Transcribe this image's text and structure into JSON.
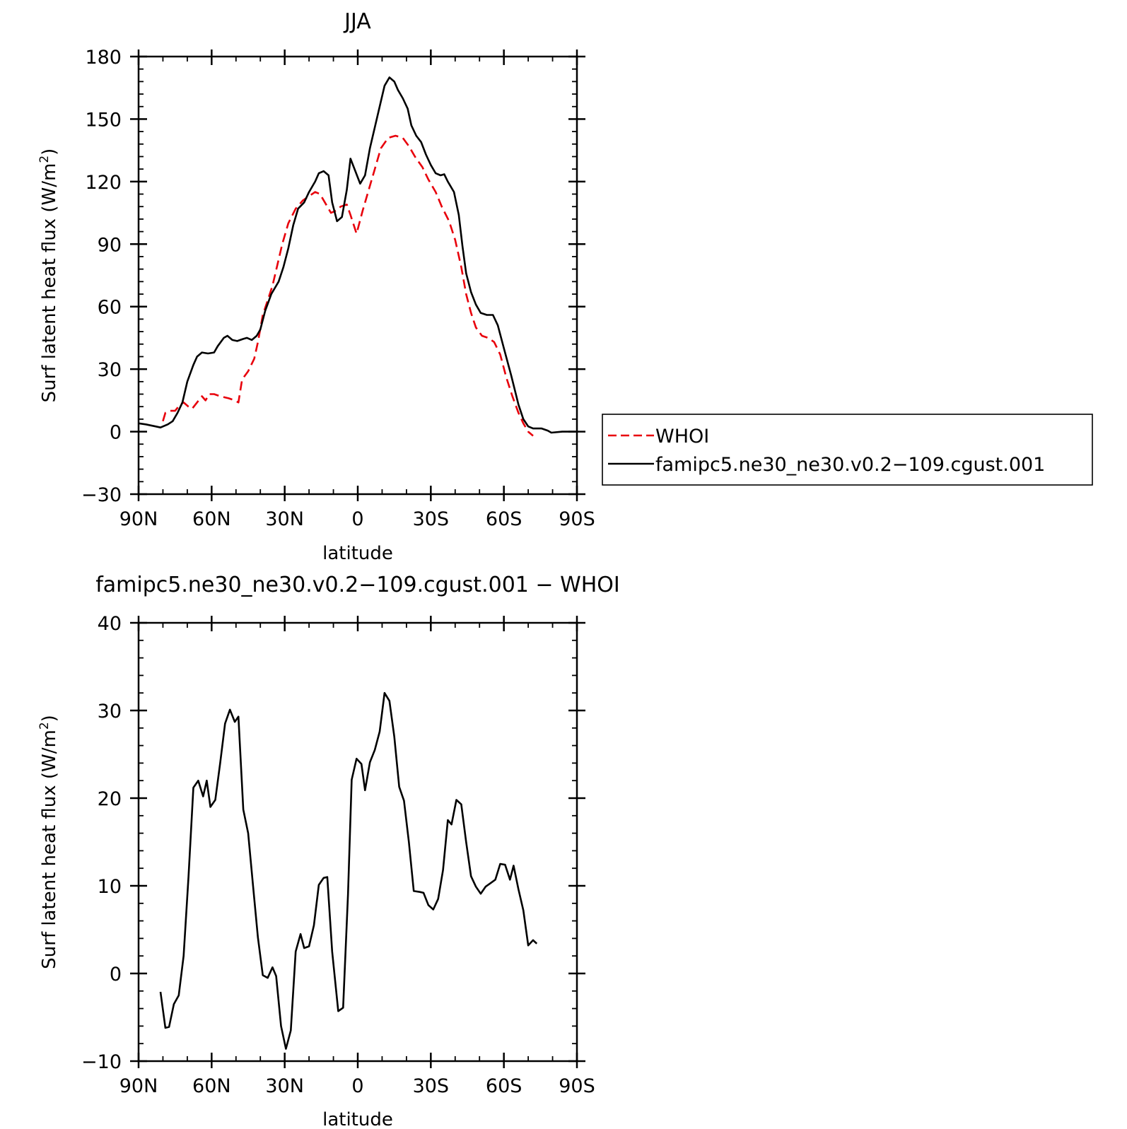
{
  "chart_data": [
    {
      "type": "line",
      "title": "JJA",
      "xlabel": "latitude",
      "ylabel": "Surf latent heat flux (W/m",
      "ylabel_sup": "2",
      "ylabel_close": ")",
      "xlim": [
        90,
        -90
      ],
      "ylim": [
        -30,
        180
      ],
      "xticks": [
        90,
        60,
        30,
        0,
        -30,
        -60,
        -90
      ],
      "xtick_labels": [
        "90N",
        "60N",
        "30N",
        "0",
        "30S",
        "60S",
        "90S"
      ],
      "yticks": [
        -30,
        0,
        30,
        60,
        90,
        120,
        150,
        180
      ],
      "ytick_labels": [
        "−30",
        "0",
        "30",
        "60",
        "90",
        "120",
        "150",
        "180"
      ],
      "legend_position": "right",
      "series": [
        {
          "name": "WHOI",
          "color": "#e8000b",
          "dash": "dashed",
          "points": [
            [
              80.0,
              5
            ],
            [
              79.0,
              9
            ],
            [
              77.0,
              10
            ],
            [
              75.0,
              10
            ],
            [
              73.0,
              13
            ],
            [
              71.5,
              14
            ],
            [
              69.5,
              12
            ],
            [
              68.0,
              11
            ],
            [
              66.0,
              14
            ],
            [
              64.0,
              17
            ],
            [
              62.5,
              15
            ],
            [
              61.0,
              18
            ],
            [
              59.0,
              18
            ],
            [
              56.5,
              17
            ],
            [
              53.0,
              16
            ],
            [
              50.5,
              15
            ],
            [
              49.0,
              14
            ],
            [
              47.5,
              25
            ],
            [
              45.0,
              29
            ],
            [
              42.5,
              35
            ],
            [
              41.0,
              43
            ],
            [
              39.0,
              56
            ],
            [
              37.0,
              63
            ],
            [
              35.0,
              70
            ],
            [
              33.0,
              80
            ],
            [
              31.0,
              90
            ],
            [
              28.5,
              100
            ],
            [
              25.5,
              107
            ],
            [
              22.5,
              111
            ],
            [
              20.0,
              113
            ],
            [
              17.5,
              115
            ],
            [
              15.5,
              114
            ],
            [
              13.5,
              110
            ],
            [
              11.0,
              105
            ],
            [
              9.0,
              106
            ],
            [
              7.0,
              108
            ],
            [
              4.5,
              109
            ],
            [
              3.0,
              104
            ],
            [
              0.5,
              95
            ],
            [
              -2.0,
              106
            ],
            [
              -5.0,
              118
            ],
            [
              -7.0,
              126
            ],
            [
              -9.5,
              136
            ],
            [
              -12.5,
              141
            ],
            [
              -15.5,
              142
            ],
            [
              -18.5,
              141
            ],
            [
              -21.0,
              137
            ],
            [
              -23.5,
              132
            ],
            [
              -26.5,
              127
            ],
            [
              -29.0,
              121
            ],
            [
              -32.0,
              115
            ],
            [
              -34.5,
              108
            ],
            [
              -37.5,
              101
            ],
            [
              -40.0,
              92
            ],
            [
              -42.5,
              79
            ],
            [
              -44.5,
              66
            ],
            [
              -46.5,
              57
            ],
            [
              -48.5,
              50
            ],
            [
              -51.0,
              46
            ],
            [
              -53.5,
              45
            ],
            [
              -56.0,
              43
            ],
            [
              -58.5,
              37
            ],
            [
              -61.0,
              26
            ],
            [
              -63.5,
              17
            ],
            [
              -66.0,
              9
            ],
            [
              -68.0,
              4
            ],
            [
              -70.0,
              0
            ],
            [
              -72.0,
              -2
            ]
          ]
        },
        {
          "name": "famipc5.ne30_ne30.v0.2−109.cgust.001",
          "color": "#000000",
          "dash": "solid",
          "points": [
            [
              90.0,
              4
            ],
            [
              87.0,
              3.5
            ],
            [
              83.0,
              2.5
            ],
            [
              81.0,
              2
            ],
            [
              78.0,
              3.5
            ],
            [
              76.0,
              5
            ],
            [
              74.0,
              9
            ],
            [
              72.0,
              14
            ],
            [
              70.0,
              24
            ],
            [
              67.5,
              32
            ],
            [
              66.0,
              36
            ],
            [
              64.0,
              38
            ],
            [
              61.5,
              37.5
            ],
            [
              59.0,
              38
            ],
            [
              57.5,
              41
            ],
            [
              55.0,
              45
            ],
            [
              53.5,
              46
            ],
            [
              51.5,
              44
            ],
            [
              49.5,
              43.5
            ],
            [
              47.0,
              44.5
            ],
            [
              45.5,
              45
            ],
            [
              43.5,
              44
            ],
            [
              41.5,
              46
            ],
            [
              40.0,
              49
            ],
            [
              38.0,
              58
            ],
            [
              35.5,
              66
            ],
            [
              32.5,
              72
            ],
            [
              30.5,
              79
            ],
            [
              28.5,
              88
            ],
            [
              26.5,
              99
            ],
            [
              24.5,
              107
            ],
            [
              22.0,
              110
            ],
            [
              20.0,
              115
            ],
            [
              17.5,
              120
            ],
            [
              16.0,
              124
            ],
            [
              14.0,
              125
            ],
            [
              12.0,
              123
            ],
            [
              10.5,
              110
            ],
            [
              8.5,
              101
            ],
            [
              6.5,
              103
            ],
            [
              4.5,
              116
            ],
            [
              3.0,
              131
            ],
            [
              1.0,
              125
            ],
            [
              -1.0,
              119
            ],
            [
              -3.0,
              123
            ],
            [
              -5.0,
              136
            ],
            [
              -7.0,
              146
            ],
            [
              -9.0,
              156
            ],
            [
              -11.0,
              166
            ],
            [
              -13.0,
              170
            ],
            [
              -15.0,
              168
            ],
            [
              -16.5,
              164
            ],
            [
              -18.5,
              160
            ],
            [
              -20.5,
              155
            ],
            [
              -22.0,
              147
            ],
            [
              -24.0,
              142
            ],
            [
              -26.0,
              139
            ],
            [
              -28.0,
              133
            ],
            [
              -30.0,
              128
            ],
            [
              -32.0,
              124
            ],
            [
              -34.0,
              123
            ],
            [
              -35.5,
              123.5
            ],
            [
              -37.0,
              120
            ],
            [
              -39.5,
              115
            ],
            [
              -41.5,
              104
            ],
            [
              -43.0,
              89
            ],
            [
              -44.5,
              76
            ],
            [
              -46.5,
              67
            ],
            [
              -48.5,
              61
            ],
            [
              -50.5,
              57
            ],
            [
              -53.0,
              56
            ],
            [
              -55.5,
              56
            ],
            [
              -57.5,
              51
            ],
            [
              -60.0,
              40
            ],
            [
              -63.0,
              27
            ],
            [
              -66.0,
              13
            ],
            [
              -68.0,
              6
            ],
            [
              -70.0,
              2.5
            ],
            [
              -72.0,
              1.5
            ],
            [
              -75.5,
              1.5
            ],
            [
              -78.0,
              0.5
            ],
            [
              -79.5,
              -0.5
            ],
            [
              -84.0,
              0
            ],
            [
              -89.5,
              0
            ]
          ]
        }
      ]
    },
    {
      "type": "line",
      "title": "famipc5.ne30_ne30.v0.2−109.cgust.001  −  WHOI",
      "xlabel": "latitude",
      "ylabel": "Surf latent heat flux (W/m",
      "ylabel_sup": "2",
      "ylabel_close": ")",
      "xlim": [
        90,
        -90
      ],
      "ylim": [
        -10,
        40
      ],
      "xticks": [
        90,
        60,
        30,
        0,
        -30,
        -60,
        -90
      ],
      "xtick_labels": [
        "90N",
        "60N",
        "30N",
        "0",
        "30S",
        "60S",
        "90S"
      ],
      "yticks": [
        -10,
        0,
        10,
        20,
        30,
        40
      ],
      "ytick_labels": [
        "−10",
        "0",
        "10",
        "20",
        "30",
        "40"
      ],
      "series": [
        {
          "color": "#000000",
          "dash": "solid",
          "points": [
            [
              81.0,
              -2.1
            ],
            [
              79.0,
              -6.2
            ],
            [
              77.5,
              -6.1
            ],
            [
              75.5,
              -3.5
            ],
            [
              73.5,
              -2.5
            ],
            [
              71.5,
              2
            ],
            [
              69.5,
              11
            ],
            [
              67.5,
              21.2
            ],
            [
              65.5,
              22
            ],
            [
              63.5,
              20.2
            ],
            [
              62.0,
              22
            ],
            [
              60.5,
              19
            ],
            [
              58.5,
              19.8
            ],
            [
              56.5,
              24
            ],
            [
              54.5,
              28.5
            ],
            [
              52.5,
              30.1
            ],
            [
              50.5,
              28.7
            ],
            [
              49.0,
              29.3
            ],
            [
              47.0,
              18.7
            ],
            [
              45.0,
              16
            ],
            [
              43.0,
              10
            ],
            [
              41.0,
              4.1
            ],
            [
              39.0,
              -0.2
            ],
            [
              37.0,
              -0.5
            ],
            [
              35.0,
              0.7
            ],
            [
              33.5,
              -0.3
            ],
            [
              31.5,
              -6
            ],
            [
              29.5,
              -8.6
            ],
            [
              27.5,
              -6.5
            ],
            [
              25.5,
              2.5
            ],
            [
              23.5,
              4.5
            ],
            [
              22.0,
              2.9
            ],
            [
              20.0,
              3.1
            ],
            [
              18.0,
              5.5
            ],
            [
              16.0,
              10.1
            ],
            [
              14.0,
              10.9
            ],
            [
              12.5,
              11
            ],
            [
              10.5,
              2.5
            ],
            [
              8.0,
              -4.3
            ],
            [
              6.0,
              -3.9
            ],
            [
              4.0,
              9
            ],
            [
              2.5,
              22.1
            ],
            [
              0.5,
              24.5
            ],
            [
              -1.5,
              23.9
            ],
            [
              -3.0,
              20.9
            ],
            [
              -5.0,
              24.1
            ],
            [
              -7.0,
              25.5
            ],
            [
              -9.0,
              27.6
            ],
            [
              -11.0,
              32
            ],
            [
              -13.0,
              31.1
            ],
            [
              -15.0,
              27
            ],
            [
              -17.0,
              21.3
            ],
            [
              -19.0,
              19.7
            ],
            [
              -21.0,
              15
            ],
            [
              -23.0,
              9.4
            ],
            [
              -25.5,
              9.3
            ],
            [
              -27.0,
              9.2
            ],
            [
              -29.0,
              7.8
            ],
            [
              -31.0,
              7.3
            ],
            [
              -33.0,
              8.5
            ],
            [
              -35.0,
              11.8
            ],
            [
              -37.0,
              17.5
            ],
            [
              -38.5,
              17
            ],
            [
              -40.5,
              19.8
            ],
            [
              -42.5,
              19.3
            ],
            [
              -44.5,
              15
            ],
            [
              -46.5,
              11.1
            ],
            [
              -48.5,
              9.9
            ],
            [
              -50.5,
              9.1
            ],
            [
              -52.5,
              9.9
            ],
            [
              -54.5,
              10.3
            ],
            [
              -56.5,
              10.7
            ],
            [
              -58.5,
              12.5
            ],
            [
              -60.5,
              12.4
            ],
            [
              -62.5,
              10.7
            ],
            [
              -64.0,
              12.3
            ],
            [
              -66.0,
              9.6
            ],
            [
              -68.0,
              7.2
            ],
            [
              -70.0,
              3.2
            ],
            [
              -72.0,
              3.8
            ],
            [
              -73.5,
              3.4
            ]
          ]
        }
      ]
    }
  ]
}
